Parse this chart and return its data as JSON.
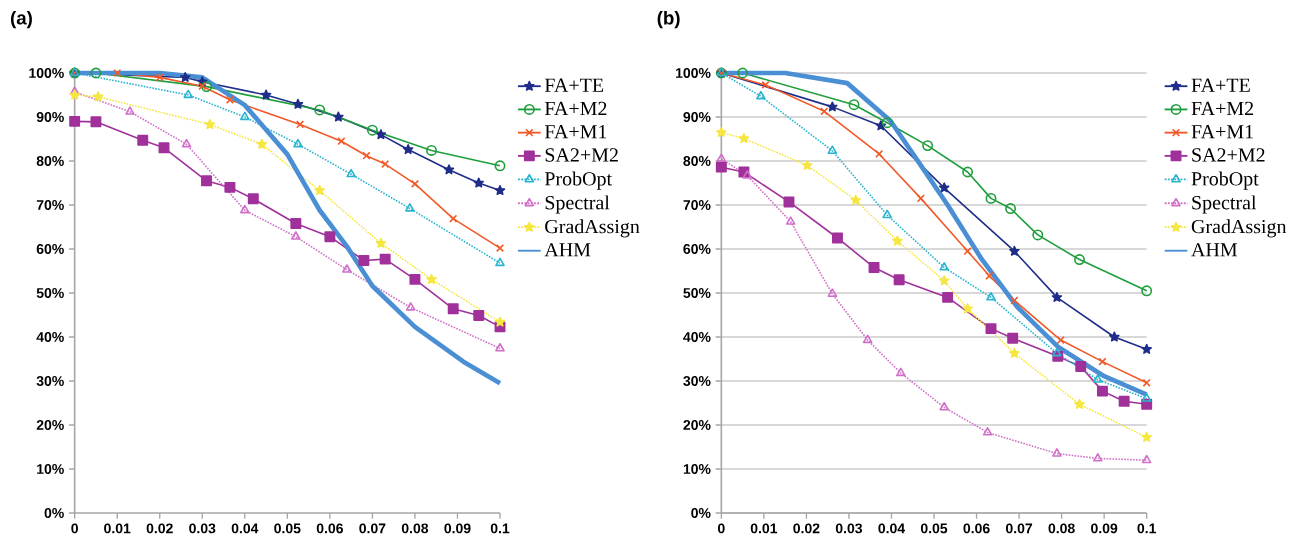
{
  "chart_data": [
    {
      "type": "line",
      "title": "(a)",
      "xlim": [
        0,
        0.1
      ],
      "ylim": [
        0,
        100
      ],
      "xticks": [
        0,
        0.01,
        0.02,
        0.03,
        0.04,
        0.05,
        0.06,
        0.07,
        0.08,
        0.09,
        0.1
      ],
      "yticks": [
        {
          "value": 0,
          "label": "0%"
        },
        {
          "value": 10,
          "label": "10%"
        },
        {
          "value": 20,
          "label": "20%"
        },
        {
          "value": 30,
          "label": "30%"
        },
        {
          "value": 40,
          "label": "40%"
        },
        {
          "value": 50,
          "label": "50%"
        },
        {
          "value": 60,
          "label": "60%"
        },
        {
          "value": 70,
          "label": "70%"
        },
        {
          "value": 80,
          "label": "80%"
        },
        {
          "value": 90,
          "label": "90%"
        },
        {
          "value": 100,
          "label": "100%"
        }
      ],
      "grid": false,
      "legend": "right",
      "series": [
        {
          "name": "FA+TE",
          "color": "#1f2d8a",
          "marker": "star",
          "line_style": "solid",
          "x": [
            0,
            0.026,
            0.03,
            0.045,
            0.0525,
            0.062,
            0.072,
            0.0784,
            0.088,
            0.095,
            0.1
          ],
          "values": [
            100,
            99,
            98,
            95,
            92.9,
            90,
            86,
            82.6,
            78,
            75,
            73.3
          ]
        },
        {
          "name": "FA+M2",
          "color": "#1e9e3c",
          "marker": "circle",
          "line_style": "solid",
          "x": [
            0,
            0.005,
            0.031,
            0.0576,
            0.07,
            0.0839,
            0.1
          ],
          "values": [
            100,
            100,
            96.9,
            91.6,
            87,
            82.4,
            78.9
          ]
        },
        {
          "name": "FA+M1",
          "color": "#f05a28",
          "marker": "cross",
          "line_style": "solid",
          "x": [
            0,
            0.01,
            0.02,
            0.03,
            0.0365,
            0.053,
            0.0627,
            0.0686,
            0.073,
            0.08,
            0.089,
            0.1
          ],
          "values": [
            100,
            100,
            99,
            97,
            93.9,
            88.3,
            84.5,
            81.2,
            79.3,
            74.8,
            66.9,
            60.2
          ]
        },
        {
          "name": "SA2+M2",
          "color": "#a0309a",
          "marker": "square",
          "line_style": "solid",
          "x": [
            0,
            0.005,
            0.016,
            0.021,
            0.031,
            0.0365,
            0.042,
            0.052,
            0.06,
            0.068,
            0.073,
            0.08,
            0.089,
            0.095,
            0.1
          ],
          "values": [
            89,
            88.9,
            84.7,
            83,
            75.5,
            74,
            71.4,
            65.8,
            62.8,
            57.4,
            57.7,
            53.1,
            46.4,
            44.9,
            42.3
          ]
        },
        {
          "name": "ProbOpt",
          "color": "#29b5d0",
          "marker": "triangle",
          "line_style": "dotted",
          "x": [
            0,
            0.0267,
            0.04,
            0.0525,
            0.065,
            0.0788,
            0.1
          ],
          "values": [
            100,
            95,
            90,
            83.8,
            77,
            69.2,
            56.8
          ]
        },
        {
          "name": "Spectral",
          "color": "#d070c8",
          "marker": "triangle",
          "line_style": "dotted",
          "x": [
            0,
            0.013,
            0.0263,
            0.04,
            0.052,
            0.064,
            0.079,
            0.1
          ],
          "values": [
            95.7,
            91.2,
            83.8,
            68.8,
            62.8,
            55.3,
            46.7,
            37.4
          ]
        },
        {
          "name": "GradAssign",
          "color": "#f5e642",
          "marker": "star",
          "line_style": "dotted",
          "x": [
            0,
            0.0055,
            0.0318,
            0.044,
            0.0576,
            0.072,
            0.0839,
            0.1
          ],
          "values": [
            95,
            94.6,
            88.3,
            83.8,
            73.3,
            61.3,
            53.1,
            43.4
          ]
        },
        {
          "name": "AHM",
          "color": "#4a8fd4",
          "marker": "none",
          "line_style": "solid",
          "x": [
            0,
            0.02,
            0.03,
            0.04,
            0.05,
            0.0576,
            0.064,
            0.07,
            0.08,
            0.0914,
            0.1
          ],
          "values": [
            100,
            100,
            99,
            92.7,
            81.5,
            68.8,
            60.6,
            51.6,
            42.3,
            34.4,
            29.5
          ]
        }
      ]
    },
    {
      "type": "line",
      "title": "(b)",
      "xlim": [
        0,
        0.1
      ],
      "ylim": [
        0,
        100
      ],
      "xticks": [
        0,
        0.01,
        0.02,
        0.03,
        0.04,
        0.05,
        0.06,
        0.07,
        0.08,
        0.09,
        0.1
      ],
      "yticks": [
        {
          "value": 0,
          "label": "0%"
        },
        {
          "value": 10,
          "label": "10%"
        },
        {
          "value": 20,
          "label": "20%"
        },
        {
          "value": 30,
          "label": "30%"
        },
        {
          "value": 40,
          "label": "40%"
        },
        {
          "value": 50,
          "label": "50%"
        },
        {
          "value": 60,
          "label": "60%"
        },
        {
          "value": 70,
          "label": "70%"
        },
        {
          "value": 80,
          "label": "80%"
        },
        {
          "value": 90,
          "label": "90%"
        },
        {
          "value": 100,
          "label": "100%"
        }
      ],
      "grid": "y",
      "legend": "right",
      "series": [
        {
          "name": "FA+TE",
          "color": "#1f2d8a",
          "marker": "star",
          "line_style": "solid",
          "x": [
            0,
            0.0261,
            0.0375,
            0.0524,
            0.0689,
            0.0789,
            0.0924,
            0.1
          ],
          "values": [
            100,
            92.3,
            88,
            73.9,
            59.5,
            49,
            40,
            37.2
          ]
        },
        {
          "name": "FA+M2",
          "color": "#1e9e3c",
          "marker": "circle",
          "line_style": "solid",
          "x": [
            0,
            0.005,
            0.0312,
            0.039,
            0.0485,
            0.0579,
            0.0634,
            0.068,
            0.0744,
            0.0842,
            0.1
          ],
          "values": [
            100,
            100,
            92.8,
            88.7,
            83.5,
            77.5,
            71.5,
            69.2,
            63.2,
            57.6,
            50.5
          ]
        },
        {
          "name": "FA+M1",
          "color": "#f05a28",
          "marker": "cross",
          "line_style": "solid",
          "x": [
            0,
            0.0104,
            0.0242,
            0.0371,
            0.0469,
            0.0579,
            0.063,
            0.0689,
            0.0798,
            0.0896,
            0.1
          ],
          "values": [
            100,
            97.3,
            91.3,
            81.6,
            71.5,
            59.5,
            53.9,
            48.3,
            39.3,
            34.4,
            29.6
          ]
        },
        {
          "name": "SA2+M2",
          "color": "#a0309a",
          "marker": "square",
          "line_style": "solid",
          "x": [
            0,
            0.0053,
            0.0159,
            0.0273,
            0.0359,
            0.0418,
            0.0532,
            0.0634,
            0.0685,
            0.0791,
            0.0845,
            0.0896,
            0.0947,
            0.1
          ],
          "values": [
            78.6,
            77.5,
            70.7,
            62.5,
            55.8,
            53,
            49,
            41.9,
            39.7,
            35.6,
            33.3,
            27.7,
            25.4,
            24.7
          ]
        },
        {
          "name": "ProbOpt",
          "color": "#29b5d0",
          "marker": "triangle",
          "line_style": "dotted",
          "x": [
            0,
            0.0093,
            0.0261,
            0.039,
            0.0524,
            0.0634,
            0.0789,
            0.0885,
            0.1
          ],
          "values": [
            100,
            94.7,
            82.3,
            67.7,
            55.8,
            49,
            36.3,
            30.3,
            26
          ]
        },
        {
          "name": "Spectral",
          "color": "#d070c8",
          "marker": "triangle",
          "line_style": "dotted",
          "x": [
            0,
            0.0061,
            0.0163,
            0.0261,
            0.0344,
            0.0422,
            0.0524,
            0.0626,
            0.0789,
            0.0885,
            0.1
          ],
          "values": [
            80.5,
            76.7,
            66.2,
            49.8,
            39.3,
            31.8,
            24,
            18.3,
            13.5,
            12.4,
            12
          ]
        },
        {
          "name": "GradAssign",
          "color": "#f5e642",
          "marker": "star",
          "line_style": "dotted",
          "x": [
            0,
            0.0053,
            0.0202,
            0.0316,
            0.0414,
            0.0524,
            0.0579,
            0.0689,
            0.0842,
            0.1
          ],
          "values": [
            86.5,
            85.1,
            79,
            71.1,
            61.8,
            52.8,
            46.4,
            36.3,
            24.7,
            17.2
          ]
        },
        {
          "name": "AHM",
          "color": "#4a8fd4",
          "marker": "none",
          "line_style": "solid",
          "x": [
            0,
            0.015,
            0.0296,
            0.0398,
            0.0469,
            0.0532,
            0.061,
            0.0696,
            0.0791,
            0.09,
            0.1
          ],
          "values": [
            100,
            100,
            97.7,
            89.1,
            79,
            70,
            58,
            46.8,
            37.8,
            31.1,
            26.9
          ]
        }
      ]
    }
  ]
}
